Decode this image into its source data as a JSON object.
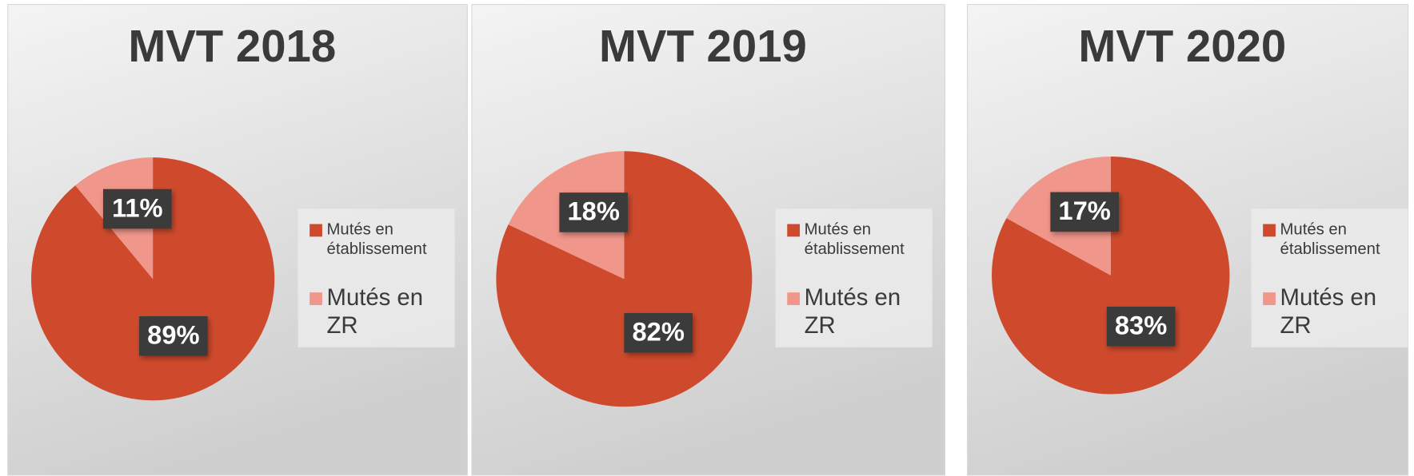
{
  "chart_data": [
    {
      "type": "pie",
      "title": "MVT 2018",
      "categories": [
        "Mutés en établissement",
        "Mutés en ZR"
      ],
      "values": [
        89,
        11
      ],
      "value_labels": [
        "89%",
        "11%"
      ],
      "colors": [
        "#cf4a2c",
        "#f0968a"
      ]
    },
    {
      "type": "pie",
      "title": "MVT 2019",
      "categories": [
        "Mutés en établissement",
        "Mutés en ZR"
      ],
      "values": [
        82,
        18
      ],
      "value_labels": [
        "82%",
        "18%"
      ],
      "colors": [
        "#cf4a2c",
        "#f0968a"
      ]
    },
    {
      "type": "pie",
      "title": "MVT 2020",
      "categories": [
        "Mutés en établissement",
        "Mutés en ZR"
      ],
      "values": [
        83,
        17
      ],
      "value_labels": [
        "83%",
        "17%"
      ],
      "colors": [
        "#cf4a2c",
        "#f0968a"
      ]
    }
  ]
}
